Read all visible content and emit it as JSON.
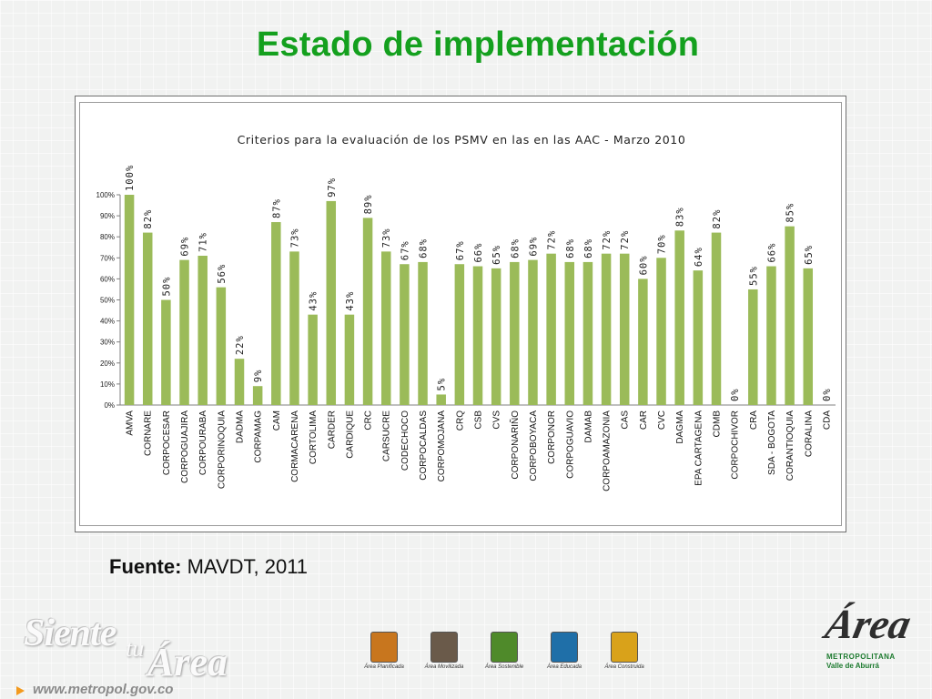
{
  "slide": {
    "title": "Estado de implementación",
    "source_label": "Fuente:",
    "source_value": "MAVDT, 2011"
  },
  "branding": {
    "siente": "Siente",
    "tu": "tu",
    "area": "Área",
    "url": "www.metropol.gov.co",
    "area_icons": [
      {
        "caption": "Área Planificada",
        "color": "#c8761e"
      },
      {
        "caption": "Área Movilizada",
        "color": "#6a5a4a"
      },
      {
        "caption": "Área Sostenible",
        "color": "#4f8a2a"
      },
      {
        "caption": "Área Educada",
        "color": "#1f6fa8"
      },
      {
        "caption": "Área Construida",
        "color": "#d9a21a"
      }
    ],
    "metro_logo": {
      "script": "Área",
      "line1": "METROPOLITANA",
      "line2": "Valle de Aburrá"
    }
  },
  "colors": {
    "title": "#14a01e",
    "bar": "#9bbb59"
  },
  "chart_data": {
    "type": "bar",
    "title": "Criterios para la evaluación de los PSMV en las en las AAC  - Marzo 2010",
    "xlabel": "",
    "ylabel": "",
    "ylim": [
      0,
      100
    ],
    "yticks": [
      "0%",
      "10%",
      "20%",
      "30%",
      "40%",
      "50%",
      "60%",
      "70%",
      "80%",
      "90%",
      "100%"
    ],
    "grid": false,
    "legend": false,
    "categories": [
      "AMVA",
      "CORNARE",
      "CORPOCESAR",
      "CORPOGUAJIRA",
      "CORPOURABA",
      "CORPORINOQUIA",
      "DADMA",
      "CORPAMAG",
      "CAM",
      "CORMACARENA",
      "CORTOLIMA",
      "CARDER",
      "CARDIQUE",
      "CRC",
      "CARSUCRE",
      "CODECHOCO",
      "CORPOCALDAS",
      "CORPOMOJANA",
      "CRQ",
      "CSB",
      "CVS",
      "CORPONARIÑO",
      "CORPOBOYACA",
      "CORPONOR",
      "CORPOGUAVIO",
      "DAMAB",
      "CORPOAMAZONIA",
      "CAS",
      "CAR",
      "CVC",
      "DAGMA",
      "EPA CARTAGENA",
      "CDMB",
      "CORPOCHIVOR",
      "CRA",
      "SDA - BOGOTA",
      "CORANTIOQUIA",
      "CORALINA",
      "CDA"
    ],
    "values": [
      100,
      82,
      50,
      69,
      71,
      56,
      22,
      9,
      87,
      73,
      43,
      97,
      43,
      89,
      73,
      67,
      68,
      5,
      67,
      66,
      65,
      68,
      69,
      72,
      68,
      68,
      72,
      72,
      60,
      70,
      83,
      64,
      82,
      0,
      55,
      66,
      85,
      65,
      0
    ],
    "data_labels": [
      "100%",
      "82%",
      "50%",
      "69%",
      "71%",
      "56%",
      "22%",
      "9%",
      "87%",
      "73%",
      "43%",
      "97%",
      "43%",
      "89%",
      "73%",
      "67%",
      "68%",
      "5%",
      "67%",
      "66%",
      "65%",
      "68%",
      "69%",
      "72%",
      "68%",
      "68%",
      "72%",
      "72%",
      "60%",
      "70%",
      "83%",
      "64%",
      "82%",
      "0%",
      "55%",
      "66%",
      "85%",
      "65%",
      "0%"
    ]
  }
}
